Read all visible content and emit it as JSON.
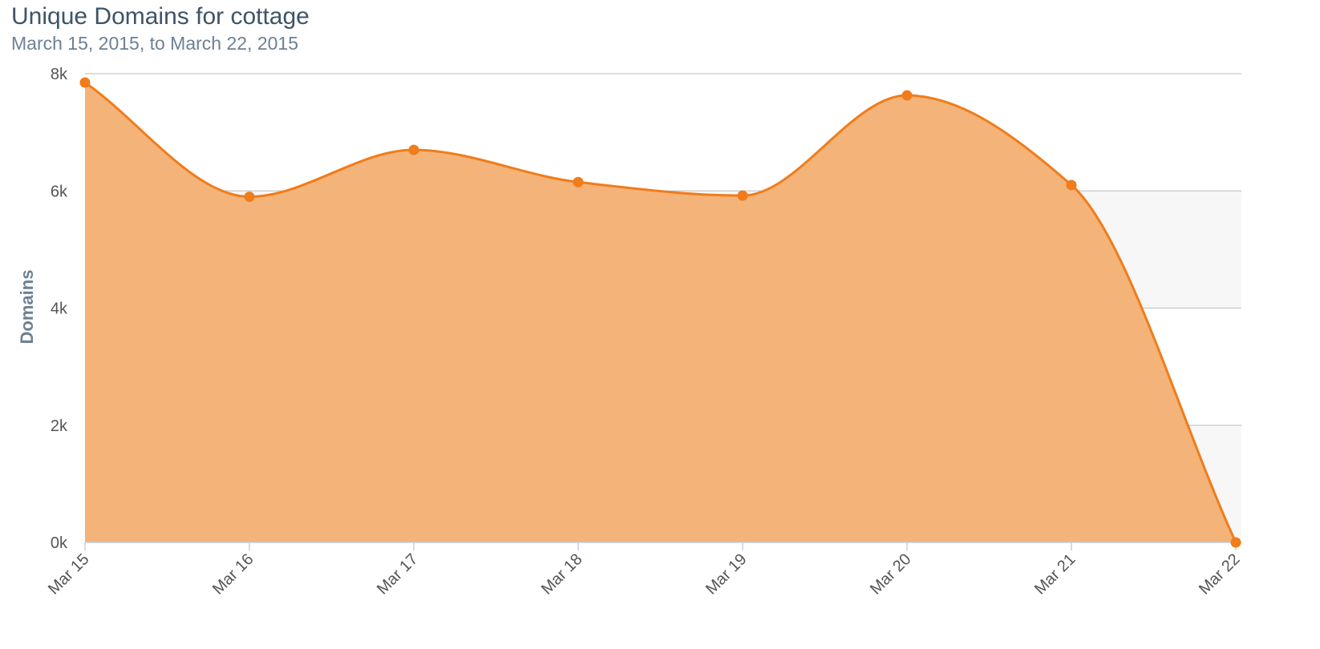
{
  "chart_data": {
    "type": "area",
    "title": "Unique Domains for cottage",
    "subtitle": "March 15, 2015, to March 22, 2015",
    "xlabel": "",
    "ylabel": "Domains",
    "categories": [
      "Mar 15",
      "Mar 16",
      "Mar 17",
      "Mar 18",
      "Mar 19",
      "Mar 20",
      "Mar 21",
      "Mar 22"
    ],
    "series": [
      {
        "values": [
          7850,
          5900,
          6700,
          6150,
          5920,
          7630,
          6100,
          0
        ]
      }
    ],
    "ylim": [
      0,
      8000
    ],
    "yticks": [
      0,
      2000,
      4000,
      6000,
      8000
    ],
    "ytick_labels": [
      "0k",
      "2k",
      "4k",
      "6k",
      "8k"
    ],
    "grid": true,
    "legend": "none",
    "colors": {
      "line": "#f07c1a",
      "fill": "#f4b378",
      "point": "#f07c1a",
      "grid": "#c8c8c8",
      "plot_background_band": "#f7f7f7"
    }
  }
}
